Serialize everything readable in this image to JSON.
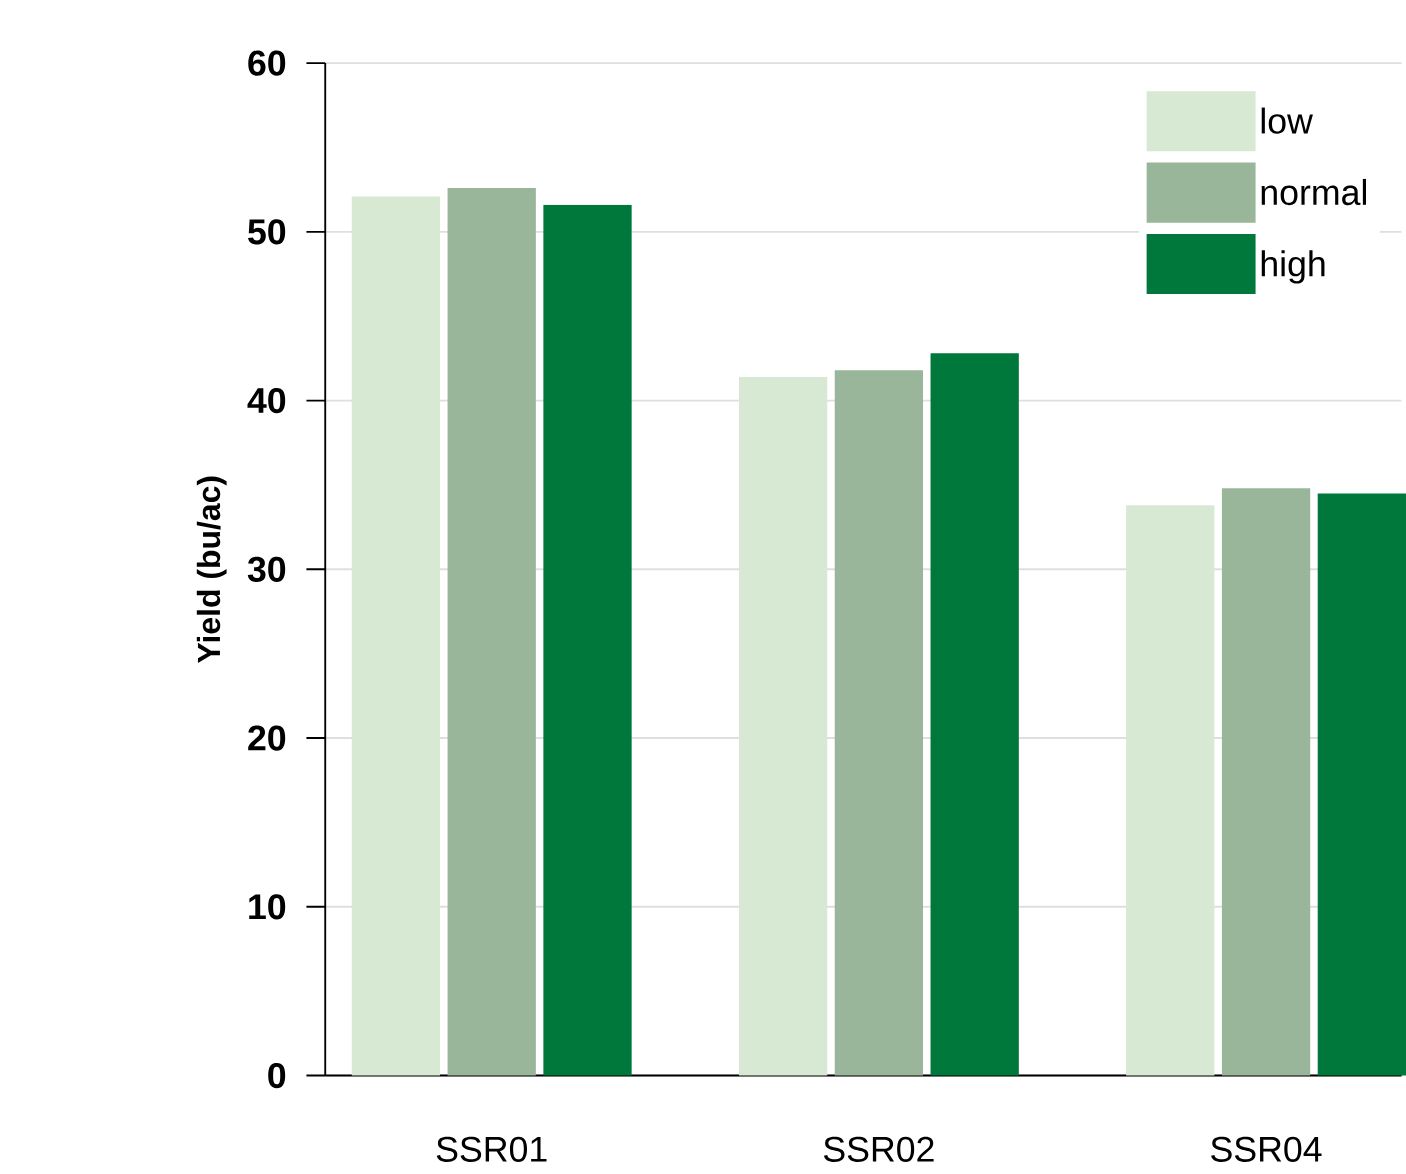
{
  "chart_data": {
    "type": "bar",
    "ylabel": "Yield (bu/ac)",
    "categories": [
      "SSR01",
      "SSR02",
      "SSR04"
    ],
    "series": [
      {
        "name": "low",
        "color": "#d7e9d3",
        "values": [
          52.1,
          41.4,
          33.8
        ]
      },
      {
        "name": "normal",
        "color": "#99b69a",
        "values": [
          52.6,
          41.8,
          34.8
        ]
      },
      {
        "name": "high",
        "color": "#00773b",
        "values": [
          51.6,
          42.8,
          34.5
        ]
      }
    ],
    "ylim": [
      0,
      60
    ],
    "yticks": [
      0,
      10,
      20,
      30,
      40,
      50,
      60
    ],
    "grid": "y",
    "legend": "top right"
  }
}
